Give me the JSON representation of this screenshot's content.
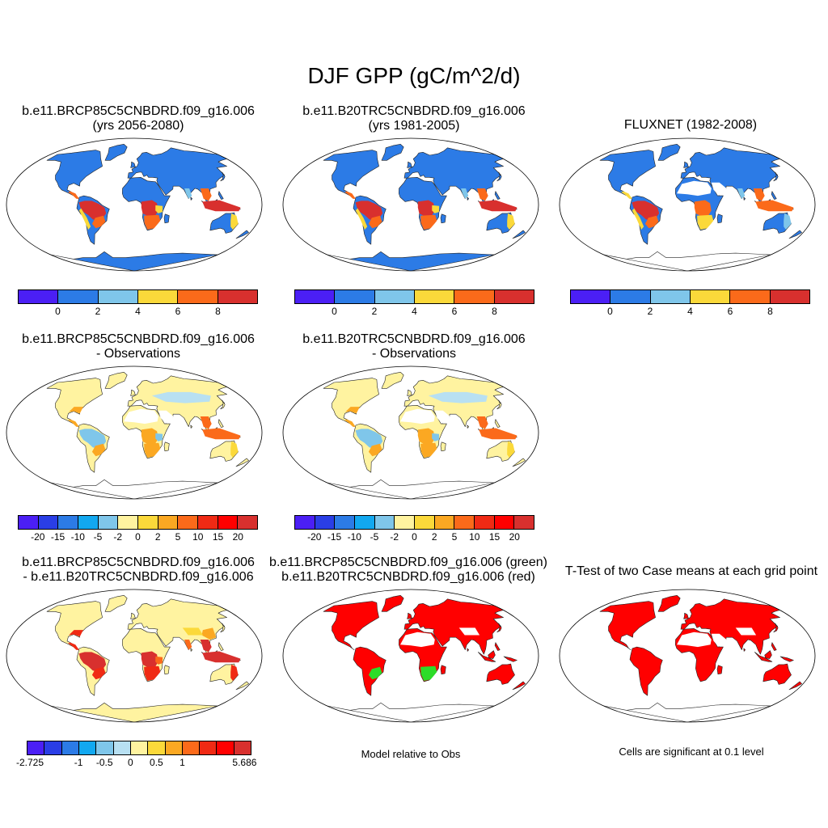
{
  "title": "DJF GPP (gC/m^2/d)",
  "palettes": {
    "abs": [
      "#4b1ff5",
      "#2c7be6",
      "#7fc6ea",
      "#fbd93a",
      "#fb6a1a",
      "#d8302e"
    ],
    "diff": [
      "#4b1ff5",
      "#2a3ee6",
      "#2c7be6",
      "#12a8f0",
      "#7fc6ea",
      "#b8e0f2",
      "#fff3a0",
      "#fbd93a",
      "#fba822",
      "#fb6a1a",
      "#f02a14",
      "#ff0000",
      "#d8302e"
    ],
    "sig_red": "#ff0000",
    "sig_green": "#2cdc28"
  },
  "panels": [
    {
      "title_line1": "b.e11.BRCP85C5CNBDRD.f09_g16.006",
      "title_line2": "(yrs 2056-2080)",
      "style": "abs"
    },
    {
      "title_line1": "b.e11.B20TRC5CNBDRD.f09_g16.006",
      "title_line2": "(yrs 1981-2005)",
      "style": "abs"
    },
    {
      "title_line1": "FLUXNET (1982-2008)",
      "title_line2": "",
      "style": "obs"
    },
    {
      "title_line1": "b.e11.BRCP85C5CNBDRD.f09_g16.006",
      "title_line2": "- Observations",
      "style": "bias"
    },
    {
      "title_line1": "b.e11.B20TRC5CNBDRD.f09_g16.006",
      "title_line2": "- Observations",
      "style": "bias"
    },
    {
      "title_line1": "b.e11.BRCP85C5CNBDRD.f09_g16.006",
      "title_line2": "- b.e11.B20TRC5CNBDRD.f09_g16.006",
      "style": "diff"
    },
    {
      "title_line1": "b.e11.BRCP85C5CNBDRD.f09_g16.006 (green)",
      "title_line2": "b.e11.B20TRC5CNBDRD.f09_g16.006 (red)",
      "style": "sig2"
    },
    {
      "title_line1": "T-Test of two Case means at each grid point",
      "title_line2": "",
      "style": "sig"
    }
  ],
  "colorbars": {
    "abs_ticks": [
      "0",
      "2",
      "4",
      "6",
      "8"
    ],
    "bias_ticks": [
      "-20",
      "-15",
      "-10",
      "-5",
      "-2",
      "0",
      "2",
      "5",
      "10",
      "15",
      "20"
    ],
    "diff_ticks": [
      "-2.725",
      "-1",
      "-0.5",
      "0",
      "0.5",
      "1",
      "5.686"
    ]
  },
  "notes": {
    "model_relative": "Model relative to Obs",
    "significance": "Cells are significant at 0.1 level"
  }
}
